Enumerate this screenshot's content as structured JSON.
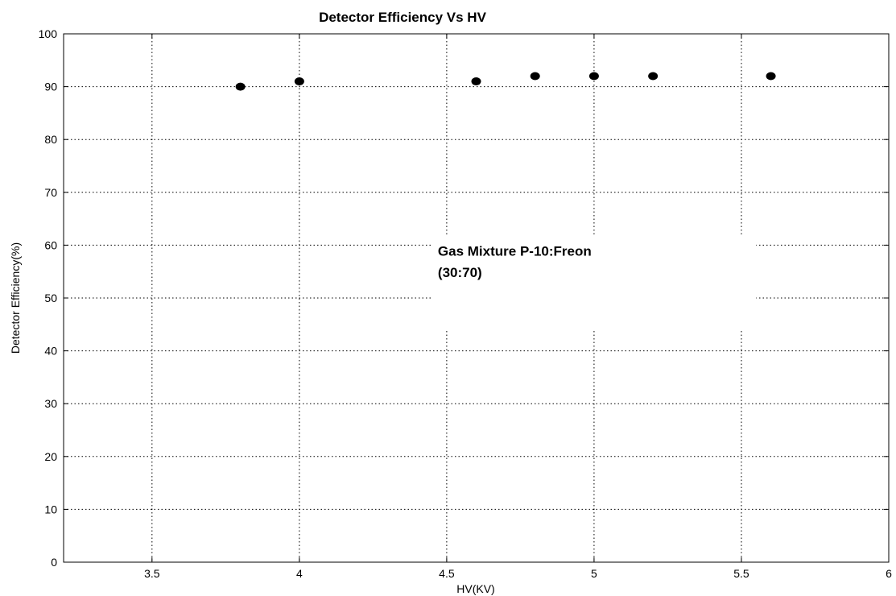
{
  "chart_data": {
    "type": "scatter",
    "title": "Detector Efficiency Vs HV",
    "xlabel": "HV(KV)",
    "ylabel": "Detector Efficiency(%)",
    "xlim": [
      3.2,
      6
    ],
    "ylim": [
      0,
      100
    ],
    "xticks": [
      3.5,
      4,
      4.5,
      5,
      5.5,
      6
    ],
    "xtick_labels": [
      "3.5",
      "4",
      "4.5",
      "5",
      "5.5",
      "6"
    ],
    "yticks": [
      0,
      10,
      20,
      30,
      40,
      50,
      60,
      70,
      80,
      90,
      100
    ],
    "ytick_labels": [
      "0",
      "10",
      "20",
      "30",
      "40",
      "50",
      "60",
      "70",
      "80",
      "90",
      "100"
    ],
    "grid": true,
    "series": [
      {
        "x": [
          3.8,
          4.0,
          4.6,
          4.8,
          5.0,
          5.2,
          5.6
        ],
        "y": [
          90,
          91,
          91,
          92,
          92,
          92,
          92
        ],
        "marker_color": "#000000"
      }
    ],
    "annotations": [
      {
        "text": "Gas Mixture P-10:Freon",
        "x": 4.47,
        "y": 58
      },
      {
        "text": "(30:70)",
        "x": 4.47,
        "y": 54
      }
    ]
  }
}
